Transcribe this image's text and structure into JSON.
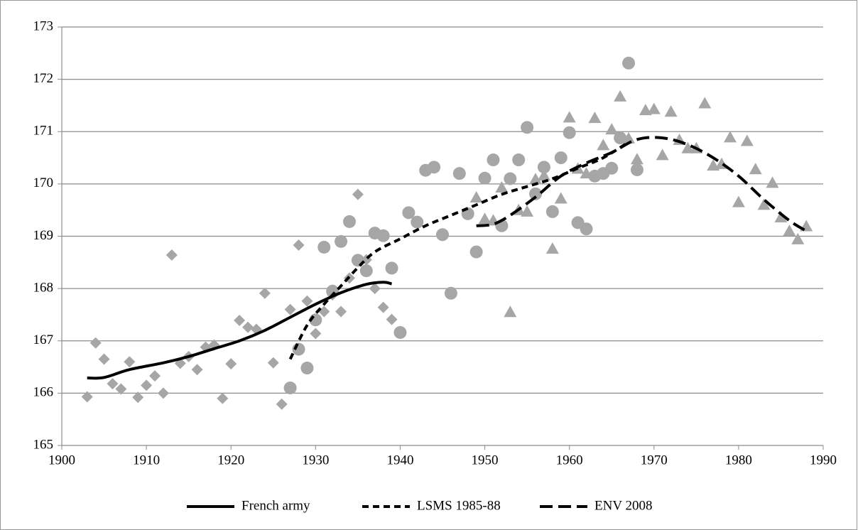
{
  "chart_data": {
    "type": "scatter",
    "xlim": [
      1900,
      1990
    ],
    "xticks": [
      1900,
      1910,
      1920,
      1930,
      1940,
      1950,
      1960,
      1970,
      1980,
      1990
    ],
    "ylim": [
      165,
      173
    ],
    "yticks": [
      165,
      166,
      167,
      168,
      169,
      170,
      171,
      172,
      173
    ],
    "grid": true,
    "legend": "bottom",
    "series": [
      {
        "marker": "diamond",
        "color": "#a6a6a6",
        "x": [
          1903,
          1904,
          1905,
          1906,
          1907,
          1908,
          1909,
          1910,
          1911,
          1912,
          1913,
          1914,
          1915,
          1916,
          1917,
          1918,
          1919,
          1920,
          1921,
          1922,
          1923,
          1924,
          1925,
          1926,
          1927,
          1928,
          1929,
          1930,
          1931,
          1932,
          1933,
          1934,
          1935,
          1936,
          1937,
          1938,
          1939
        ],
        "values": [
          165.93,
          166.96,
          166.65,
          166.18,
          166.08,
          166.6,
          165.92,
          166.15,
          166.33,
          166.0,
          168.64,
          166.57,
          166.7,
          166.45,
          166.88,
          166.92,
          165.9,
          166.56,
          167.39,
          167.26,
          167.22,
          167.91,
          166.58,
          165.79,
          167.6,
          168.83,
          167.76,
          167.14,
          167.56,
          167.88,
          167.56,
          168.2,
          169.8,
          168.55,
          168.0,
          167.64,
          167.41
        ]
      },
      {
        "marker": "circle",
        "color": "#a6a6a6",
        "x": [
          1927,
          1928,
          1929,
          1930,
          1931,
          1932,
          1933,
          1934,
          1935,
          1936,
          1937,
          1938,
          1939,
          1940,
          1941,
          1942,
          1943,
          1944,
          1945,
          1946,
          1947,
          1948,
          1949,
          1950,
          1951,
          1952,
          1953,
          1954,
          1955,
          1956,
          1957,
          1958,
          1959,
          1960,
          1961,
          1962,
          1963,
          1964,
          1965,
          1966,
          1967,
          1968
        ],
        "values": [
          166.1,
          166.84,
          166.48,
          167.4,
          168.79,
          167.95,
          168.9,
          169.28,
          168.54,
          168.34,
          169.06,
          169.01,
          168.39,
          167.16,
          169.45,
          169.27,
          170.26,
          170.32,
          169.03,
          167.91,
          170.2,
          169.43,
          168.7,
          170.11,
          170.46,
          169.2,
          170.1,
          170.46,
          171.08,
          169.81,
          170.32,
          169.47,
          170.5,
          170.98,
          169.26,
          169.14,
          170.15,
          170.2,
          170.3,
          170.88,
          172.31,
          170.27
        ]
      },
      {
        "marker": "triangle",
        "color": "#a6a6a6",
        "x": [
          1949,
          1950,
          1951,
          1952,
          1953,
          1954,
          1955,
          1956,
          1957,
          1958,
          1959,
          1960,
          1961,
          1962,
          1963,
          1964,
          1965,
          1966,
          1967,
          1968,
          1969,
          1970,
          1971,
          1972,
          1973,
          1974,
          1975,
          1976,
          1977,
          1978,
          1979,
          1980,
          1981,
          1982,
          1983,
          1984,
          1985,
          1986,
          1987,
          1988
        ],
        "values": [
          169.74,
          169.33,
          169.3,
          169.93,
          167.55,
          169.5,
          169.47,
          170.09,
          170.16,
          168.76,
          169.72,
          171.27,
          170.29,
          170.2,
          171.26,
          170.74,
          171.04,
          171.67,
          170.87,
          170.47,
          171.41,
          171.43,
          170.55,
          171.38,
          170.84,
          170.68,
          170.68,
          171.54,
          170.35,
          170.38,
          170.89,
          169.65,
          170.82,
          170.28,
          169.6,
          170.02,
          169.36,
          169.1,
          168.94,
          169.19
        ]
      },
      {
        "name": "French army",
        "line": "solid",
        "color": "#000000",
        "x": [
          1903,
          1905,
          1908,
          1912,
          1915,
          1918,
          1921,
          1924,
          1927,
          1930,
          1933,
          1936,
          1938,
          1939
        ],
        "values": [
          166.29,
          166.3,
          166.45,
          166.58,
          166.7,
          166.85,
          167.0,
          167.2,
          167.45,
          167.7,
          167.92,
          168.08,
          168.12,
          168.09
        ]
      },
      {
        "name": "LSMS 1985-88",
        "line": "dash",
        "color": "#000000",
        "x": [
          1927,
          1929,
          1931,
          1933,
          1935,
          1937,
          1940,
          1943,
          1946,
          1949,
          1952,
          1955,
          1958,
          1961,
          1964,
          1967
        ],
        "values": [
          166.65,
          167.3,
          167.7,
          168.05,
          168.4,
          168.7,
          168.95,
          169.2,
          169.4,
          169.6,
          169.8,
          169.95,
          170.1,
          170.3,
          170.5,
          170.8
        ]
      },
      {
        "name": "ENV 2008",
        "line": "longdash",
        "color": "#000000",
        "x": [
          1949,
          1951,
          1953,
          1956,
          1959,
          1962,
          1965,
          1968,
          1971,
          1974,
          1977,
          1980,
          1983,
          1986,
          1988
        ],
        "values": [
          169.2,
          169.23,
          169.4,
          169.75,
          170.15,
          170.4,
          170.6,
          170.85,
          170.88,
          170.75,
          170.5,
          170.15,
          169.7,
          169.3,
          169.1
        ]
      }
    ]
  }
}
